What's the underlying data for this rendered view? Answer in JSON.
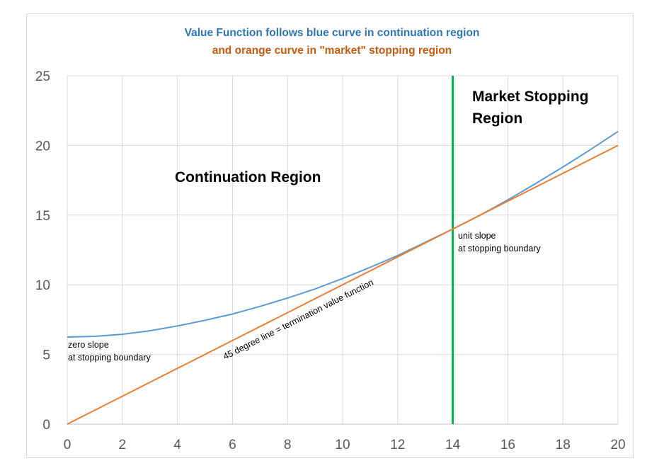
{
  "chart_data": {
    "type": "line",
    "title_lines": [
      {
        "text": "Value Function follows blue curve in continuation region",
        "color": "#2e75b6"
      },
      {
        "text": "and orange curve in \"market\" stopping region",
        "color": "#c55a11"
      }
    ],
    "xlabel": "",
    "ylabel": "",
    "xlim": [
      0,
      20
    ],
    "ylim": [
      0,
      25
    ],
    "x_ticks": [
      0,
      2,
      4,
      6,
      8,
      10,
      12,
      14,
      16,
      18,
      20
    ],
    "y_ticks": [
      0,
      5,
      10,
      15,
      20,
      25
    ],
    "grid": true,
    "series": [
      {
        "color": "#5b9bd5",
        "x": [
          0,
          1,
          2,
          3,
          4,
          5,
          6,
          7,
          8,
          9,
          10,
          11,
          12,
          13,
          14,
          15,
          16,
          17,
          18,
          19,
          20
        ],
        "y": [
          6.25,
          6.3,
          6.45,
          6.7,
          7.05,
          7.45,
          7.9,
          8.45,
          9.05,
          9.7,
          10.45,
          11.25,
          12.1,
          13.05,
          14.0,
          15.0,
          16.1,
          17.25,
          18.45,
          19.7,
          21.0
        ]
      },
      {
        "color": "#ed7d31",
        "x": [
          0,
          20
        ],
        "y": [
          0,
          20
        ]
      }
    ],
    "vertical_line": {
      "x": 14,
      "color": "#00b050"
    },
    "annotations": [
      {
        "name": "market-stopping-region-label",
        "lines": [
          "Market Stopping",
          "Region"
        ]
      },
      {
        "name": "continuation-region-label",
        "lines": [
          "Continuation Region"
        ]
      },
      {
        "name": "unit-slope-note",
        "lines": [
          "unit slope",
          "at stopping boundary"
        ]
      },
      {
        "name": "zero-slope-note",
        "lines": [
          "zero slope",
          "at stopping boundary"
        ]
      },
      {
        "name": "diagonal-line-note",
        "lines": [
          "45 degree line = termination value function"
        ]
      }
    ]
  }
}
